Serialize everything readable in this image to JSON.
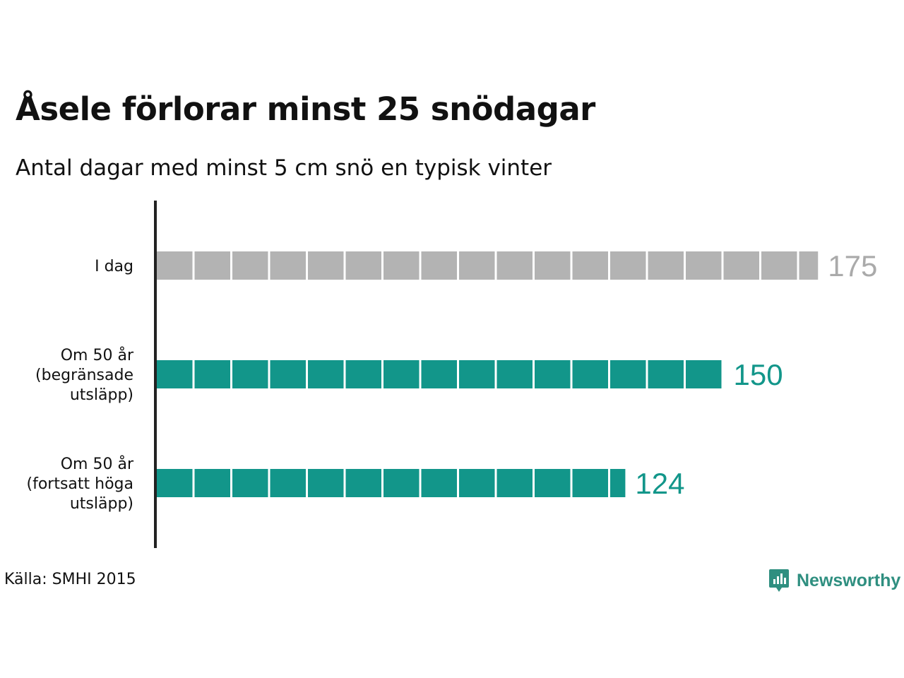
{
  "title": "Åsele förlorar minst 25 snödagar",
  "subtitle": "Antal dagar med minst 5 cm snö en typisk vinter",
  "source": "Källa: SMHI 2015",
  "brand": {
    "name": "Newsworthy",
    "logo_icon": "newsworthy-chart-bubble-icon",
    "color": "#2f8f80"
  },
  "colors": {
    "baseline": "#999999",
    "future": "#12968a",
    "axis": "#222222"
  },
  "chart_data": {
    "type": "bar",
    "orientation": "horizontal",
    "unit_per_block": 10,
    "categories": [
      [
        "I dag"
      ],
      [
        "Om 50 år",
        "(begränsade",
        "utsläpp)"
      ],
      [
        "Om 50 år",
        "(fortsatt höga",
        "utsläpp)"
      ]
    ],
    "values": [
      175,
      150,
      124
    ],
    "value_labels": [
      "175",
      "150",
      "124"
    ],
    "bar_colors": [
      "#b3b3b3",
      "#12968a",
      "#12968a"
    ],
    "label_colors": [
      "#aaaaaa",
      "#12968a",
      "#12968a"
    ]
  }
}
